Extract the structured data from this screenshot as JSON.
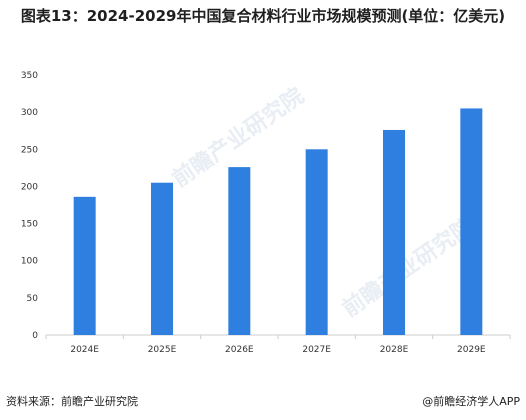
{
  "title": "图表13：2024-2029年中国复合材料行业市场规模预测(单位：亿美元)",
  "footer": {
    "source": "资料来源：前瞻产业研究院",
    "brand": "@前瞻经济学人APP"
  },
  "watermark_text": "前瞻产业研究院",
  "colors": {
    "bar": "#2f7fe0",
    "axis": "#cccccc",
    "text": "#333333"
  },
  "chart_data": {
    "type": "bar",
    "title": "图表13：2024-2029年中国复合材料行业市场规模预测(单位：亿美元)",
    "xlabel": "",
    "ylabel": "",
    "categories": [
      "2024E",
      "2025E",
      "2026E",
      "2027E",
      "2028E",
      "2029E"
    ],
    "values": [
      186,
      205,
      226,
      250,
      276,
      305
    ],
    "ylim": [
      0,
      350
    ],
    "yticks": [
      0,
      50,
      100,
      150,
      200,
      250,
      300,
      350
    ],
    "grid": false,
    "legend": "none"
  }
}
